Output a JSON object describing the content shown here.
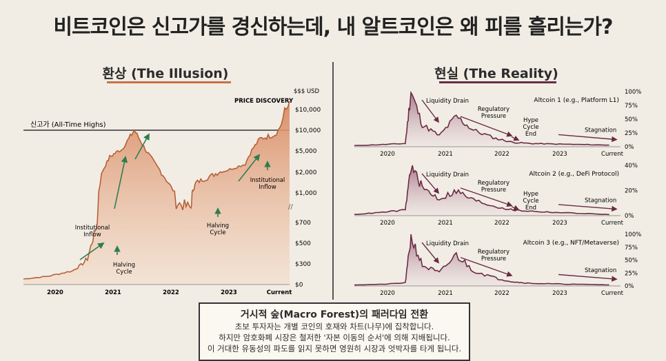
{
  "title": "비트코인은 신고가를 경신하는데, 내 알트코인은 왜 피를 흘리는가?",
  "left": {
    "heading": "환상 (The Illusion)",
    "ath_label": "신고가 (All-Time Highs)",
    "price_discovery": "PRICE DISCOVERY",
    "axis_unit": "$$$ USD",
    "yticks": [
      "$10,000",
      "$10,000",
      "$5,000",
      "$2,000",
      "$1,000",
      "$700",
      "$500",
      "$300",
      "$0"
    ],
    "xticks": [
      "2020",
      "2021",
      "2022",
      "2023",
      "Current"
    ],
    "annotations": {
      "inst1": [
        "Institutional",
        "Inflow"
      ],
      "halving1": [
        "Halving",
        "Cycle"
      ],
      "halving2": [
        "Halving",
        "Cycle"
      ],
      "inst2": [
        "Institutional",
        "Inflow"
      ]
    }
  },
  "right": {
    "heading": "현실 (The Reality)",
    "xticks": [
      "2020",
      "2021",
      "2022",
      "2023",
      "Current"
    ],
    "panels": [
      {
        "name": "Altcoin 1 (e.g., Platform L1)",
        "yticks": [
          "100%",
          "75%",
          "50%",
          "25%",
          "0%"
        ],
        "labels": {
          "drain": "Liquidity Drain",
          "reg": [
            "Regulatory",
            "Pressure"
          ],
          "hype": [
            "Hype",
            "Cycle",
            "End"
          ],
          "stag": "Stagnation"
        }
      },
      {
        "name": "Altcoin 2 (e.g., DeFi Protocol)",
        "yticks": [
          "40%",
          "20%",
          "0%"
        ],
        "labels": {
          "drain": "Liquidity Drain",
          "reg": [
            "Regulatory",
            "Pressure"
          ],
          "hype": [
            "Hype",
            "Cycle",
            "End"
          ],
          "stag": "Stagnation"
        }
      },
      {
        "name": "Altcoin 3 (e.g., NFT/Metaverse)",
        "yticks": [
          "100%",
          "75%",
          "50%",
          "25%",
          "0%"
        ],
        "labels": {
          "drain": "Liquidity Drain",
          "reg": [
            "Regulatory",
            "Pressure"
          ],
          "stag": "Stagnation"
        }
      }
    ]
  },
  "box": {
    "heading": "거시적 숲(Macro Forest)의 패러다임 전환",
    "lines": [
      "초보 투자자는 개별 코인의 호재와 차트(나무)에 집착합니다.",
      "하지만 암호화폐 시장은 철저한 '자본 이동의 순서'에 의해 지배됩니다.",
      "이 거대한 유동성의 파도를 읽지 못하면 영원히 시장과 엇박자를 타게 됩니다."
    ]
  },
  "colors": {
    "btc": "#c8714a",
    "alt": "#6a2a45",
    "arrow_green": "#2e7d4f"
  },
  "chart_data": [
    {
      "type": "area",
      "title": "환상 (The Illusion)",
      "x": [
        2019.5,
        2020,
        2020.5,
        2020.8,
        2021,
        2021.25,
        2021.5,
        2021.75,
        2022,
        2022.3,
        2022.6,
        2022.9,
        2023,
        2023.3,
        2023.6,
        2024,
        2024.3,
        2024.6,
        2024.9
      ],
      "values": [
        80,
        120,
        200,
        350,
        700,
        4200,
        5500,
        10000,
        5000,
        2000,
        900,
        850,
        1500,
        1800,
        2200,
        3200,
        8000,
        9000,
        13000
      ],
      "ylabel": "$$$ USD",
      "annotations": [
        "신고가 (All-Time Highs)",
        "PRICE DISCOVERY",
        "Institutional Inflow",
        "Halving Cycle",
        "Halving Cycle",
        "Institutional Inflow"
      ]
    },
    {
      "type": "area",
      "title": "Altcoin 1 (e.g., Platform L1)",
      "x": [
        2019.5,
        2020,
        2020.4,
        2020.5,
        2020.7,
        2021,
        2021.3,
        2021.6,
        2022,
        2022.3,
        2022.6,
        2023,
        2023.5,
        2024
      ],
      "values": [
        2,
        4,
        6,
        100,
        40,
        20,
        55,
        30,
        15,
        8,
        6,
        5,
        4,
        3
      ],
      "ylim": [
        0,
        100
      ]
    },
    {
      "type": "area",
      "title": "Altcoin 2 (e.g., DeFi Protocol)",
      "x": [
        2019.5,
        2020,
        2020.4,
        2020.5,
        2020.7,
        2021,
        2021.3,
        2021.6,
        2022,
        2022.3,
        2022.6,
        2023,
        2023.5,
        2024
      ],
      "values": [
        1,
        3,
        5,
        45,
        25,
        15,
        22,
        14,
        8,
        5,
        4,
        3,
        2,
        1
      ],
      "ylim": [
        0,
        45
      ]
    },
    {
      "type": "area",
      "title": "Altcoin 3 (e.g., NFT/Metaverse)",
      "x": [
        2019.5,
        2020,
        2020.4,
        2020.5,
        2020.7,
        2021,
        2021.3,
        2021.6,
        2022,
        2022.3,
        2022.6,
        2023,
        2023.5,
        2024
      ],
      "values": [
        2,
        3,
        6,
        95,
        40,
        25,
        60,
        30,
        15,
        8,
        5,
        4,
        3,
        2
      ],
      "ylim": [
        0,
        100
      ]
    }
  ]
}
